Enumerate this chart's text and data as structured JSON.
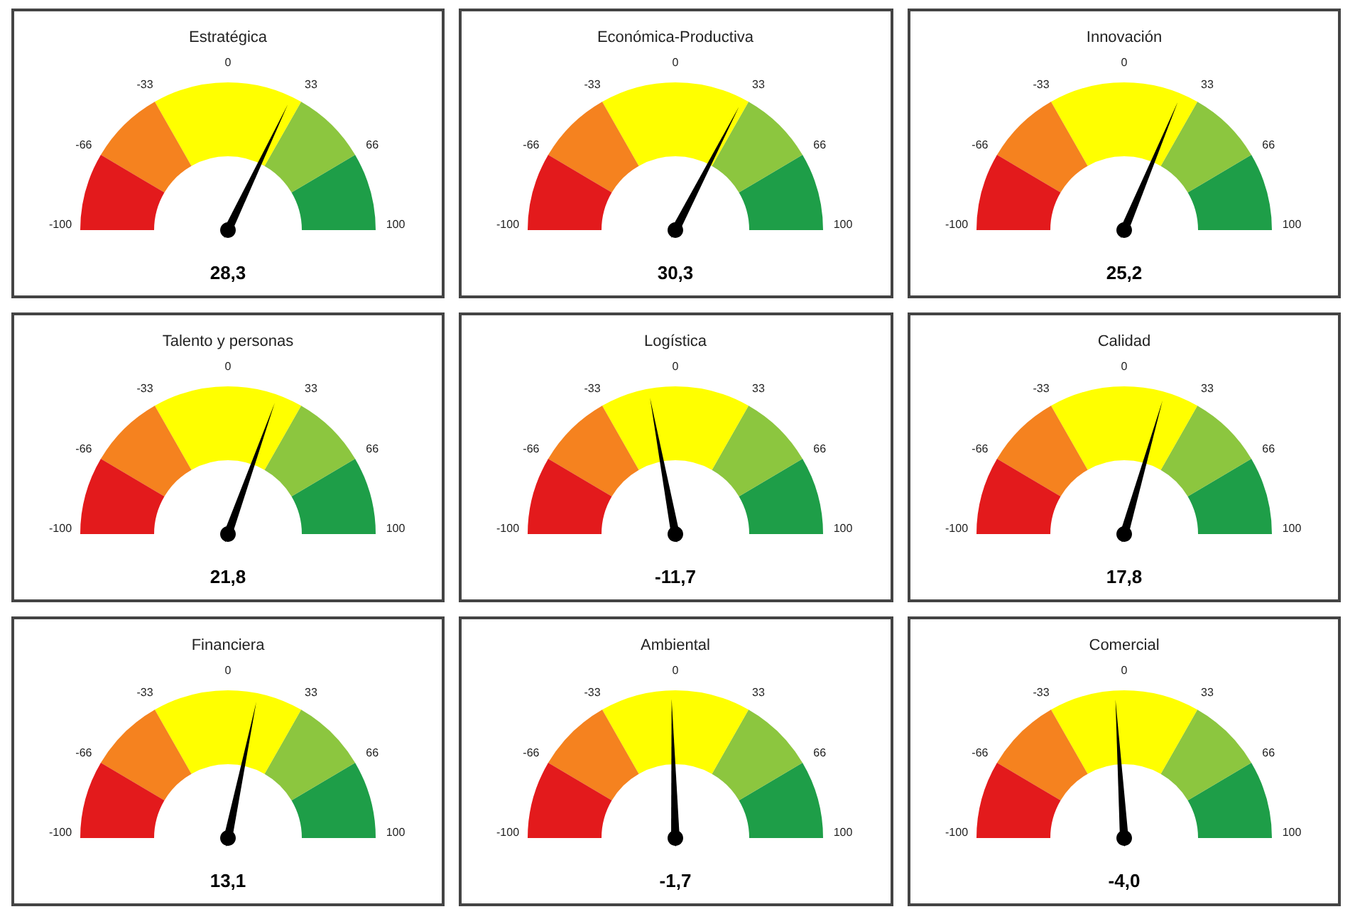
{
  "chart_data": [
    {
      "type": "other",
      "title": "Estratégica",
      "values": [
        28.3
      ],
      "value_labels": [
        "28,3"
      ],
      "annotations": [
        "-100",
        "-66",
        "-33",
        "0",
        "33",
        "66",
        "100"
      ]
    },
    {
      "type": "other",
      "title": "Económica-Productiva",
      "values": [
        30.3
      ],
      "value_labels": [
        "30,3"
      ],
      "annotations": [
        "-100",
        "-66",
        "-33",
        "0",
        "33",
        "66",
        "100"
      ]
    },
    {
      "type": "other",
      "title": "Innovación",
      "values": [
        25.2
      ],
      "value_labels": [
        "25,2"
      ],
      "annotations": [
        "-100",
        "-66",
        "-33",
        "0",
        "33",
        "66",
        "100"
      ]
    },
    {
      "type": "other",
      "title": "Talento y personas",
      "values": [
        21.8
      ],
      "value_labels": [
        "21,8"
      ],
      "annotations": [
        "-100",
        "-66",
        "-33",
        "0",
        "33",
        "66",
        "100"
      ]
    },
    {
      "type": "other",
      "title": "Logística",
      "values": [
        -11.7
      ],
      "value_labels": [
        "-11,7"
      ],
      "annotations": [
        "-100",
        "-66",
        "-33",
        "0",
        "33",
        "66",
        "100"
      ]
    },
    {
      "type": "other",
      "title": "Calidad",
      "values": [
        17.8
      ],
      "value_labels": [
        "17,8"
      ],
      "annotations": [
        "-100",
        "-66",
        "-33",
        "0",
        "33",
        "66",
        "100"
      ]
    },
    {
      "type": "other",
      "title": "Financiera",
      "values": [
        13.1
      ],
      "value_labels": [
        "13,1"
      ],
      "annotations": [
        "-100",
        "-66",
        "-33",
        "0",
        "33",
        "66",
        "100"
      ]
    },
    {
      "type": "other",
      "title": "Ambiental",
      "values": [
        -1.7
      ],
      "value_labels": [
        "-1,7"
      ],
      "annotations": [
        "-100",
        "-66",
        "-33",
        "0",
        "33",
        "66",
        "100"
      ]
    },
    {
      "type": "other",
      "title": "Comercial",
      "values": [
        -4.0
      ],
      "value_labels": [
        "-4,0"
      ],
      "annotations": [
        "-100",
        "-66",
        "-33",
        "0",
        "33",
        "66",
        "100"
      ]
    }
  ]
}
